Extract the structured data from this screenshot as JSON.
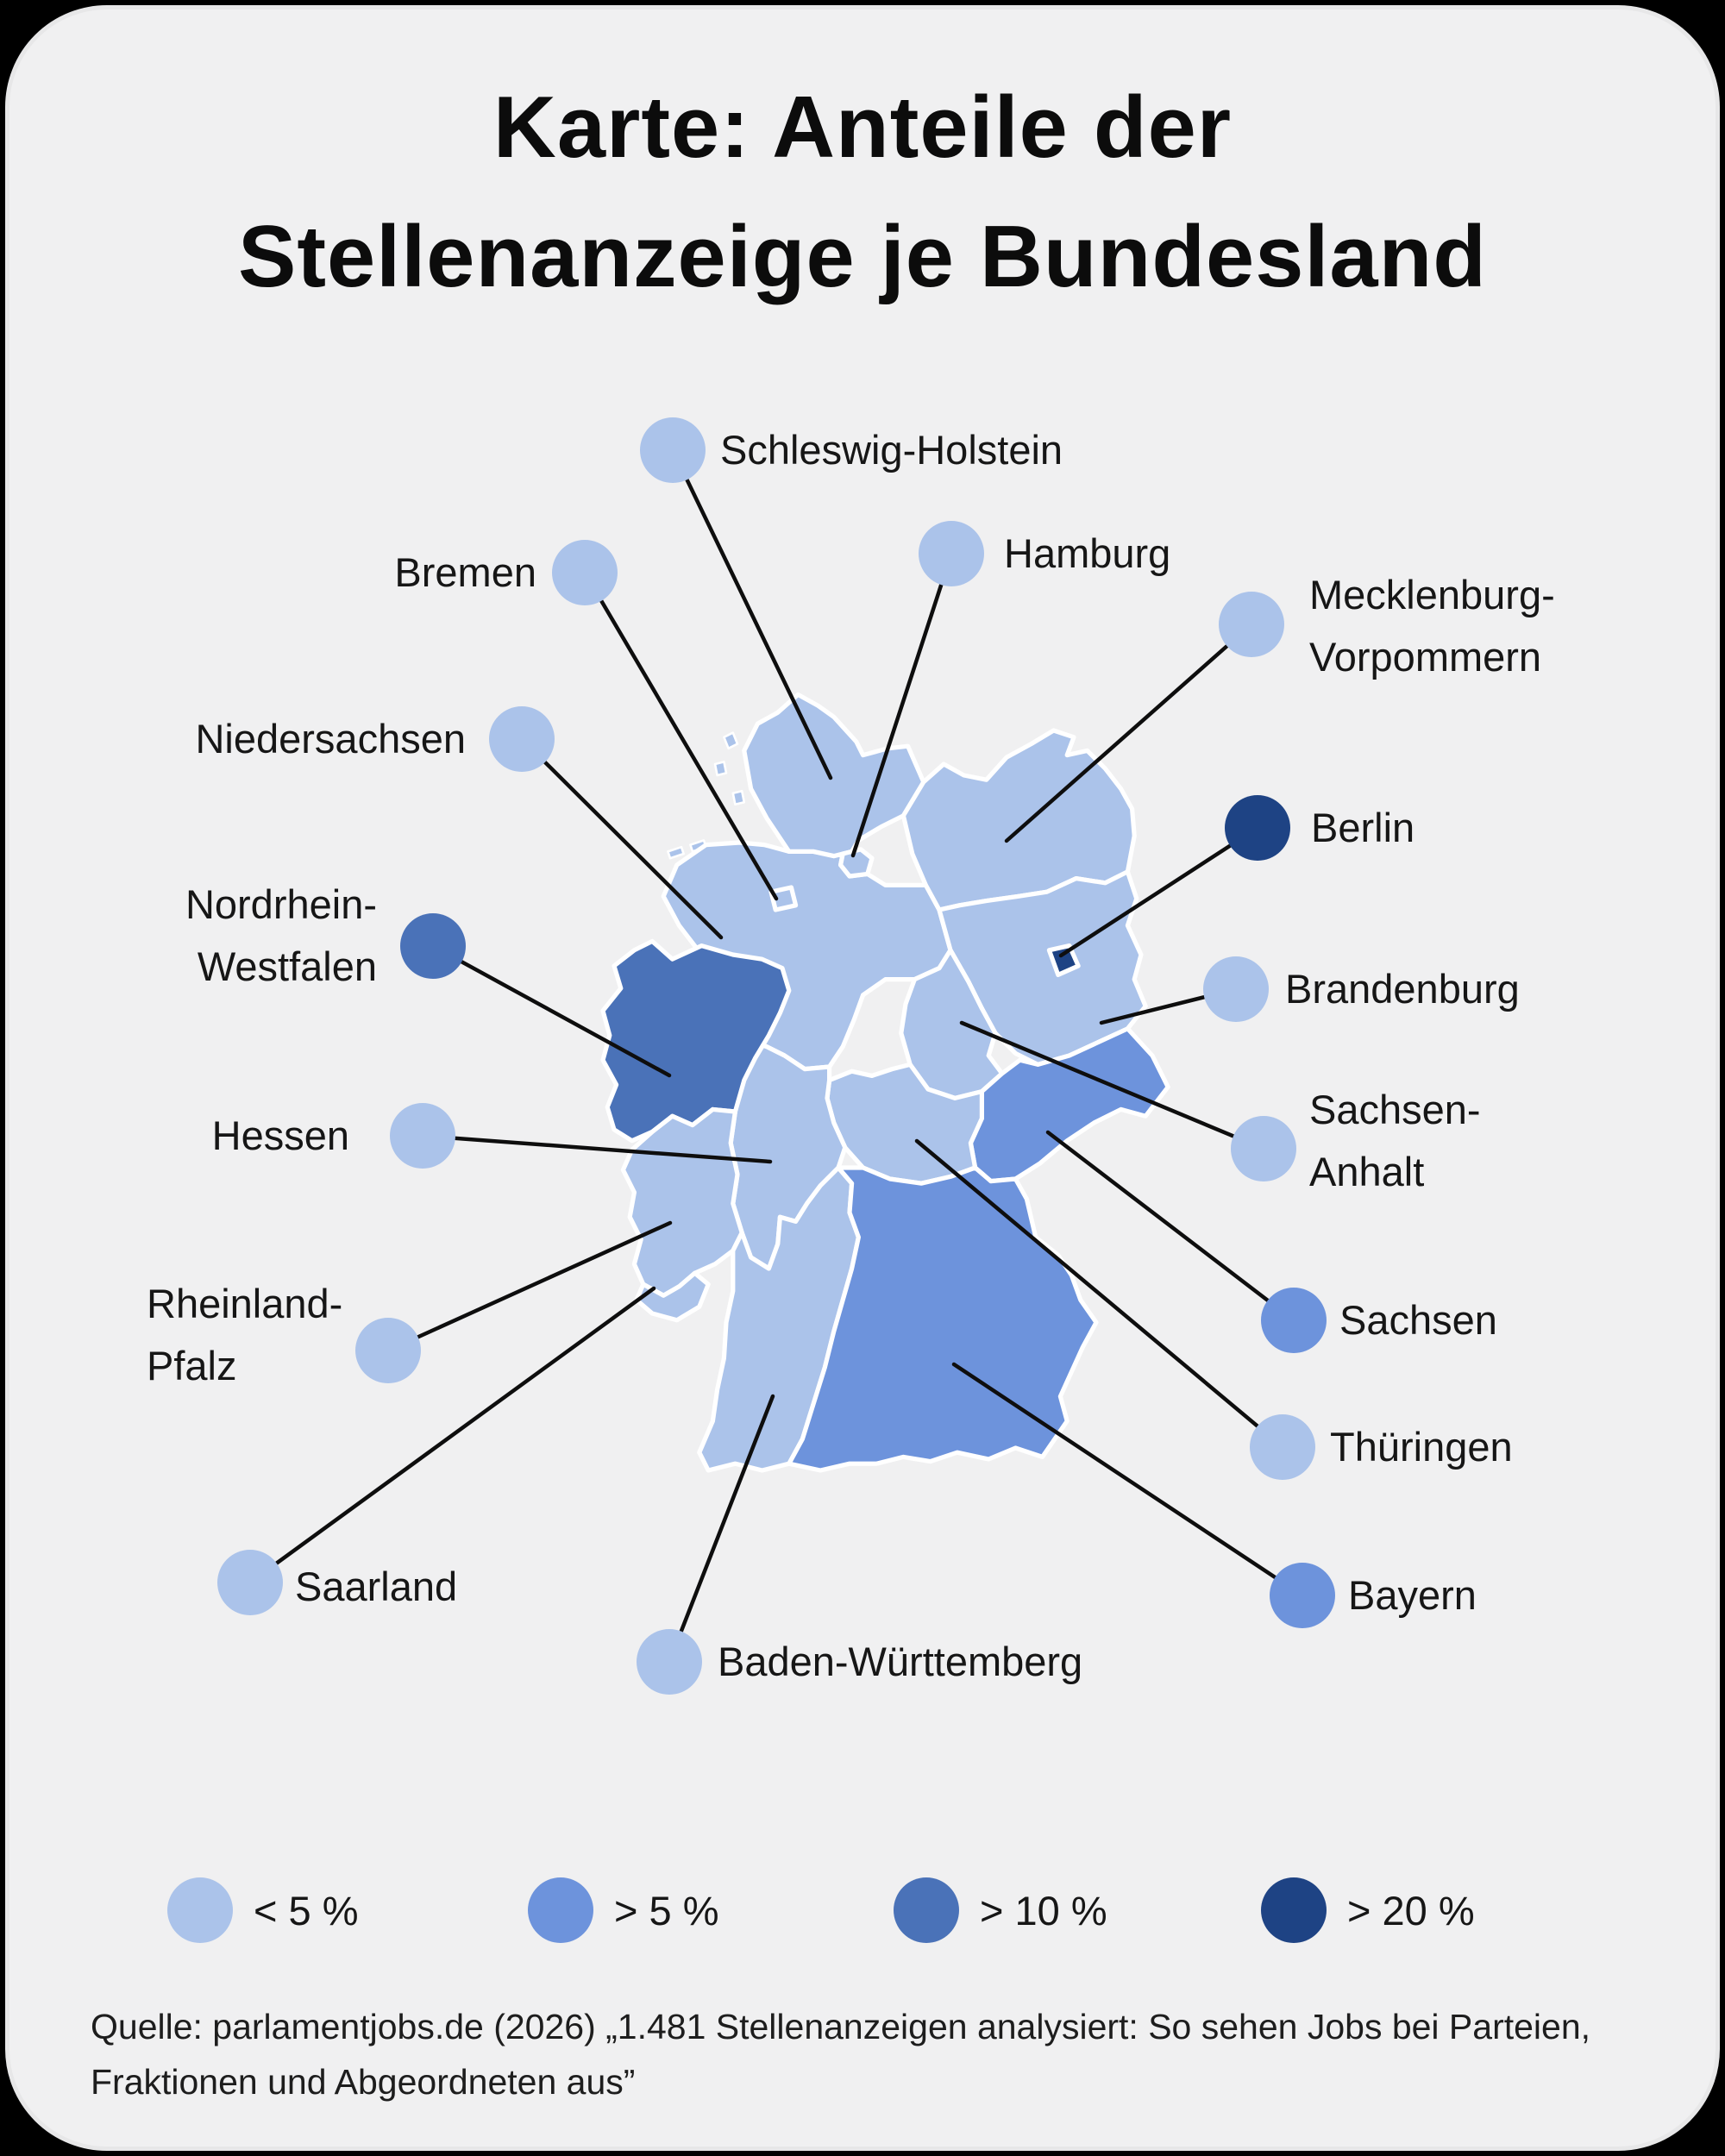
{
  "card": {
    "background": "#f0f0f1",
    "outer_background": "#000000"
  },
  "title": {
    "line1": "Karte: Anteile der",
    "line2": "Stellenanzeige je Bundesland"
  },
  "legend": {
    "items": [
      {
        "key": "lt5",
        "label": "< 5 %",
        "color": "#abc3ea"
      },
      {
        "key": "gt5",
        "label": "> 5 %",
        "color": "#6d93dc"
      },
      {
        "key": "gt10",
        "label": "> 10 %",
        "color": "#4a72b8"
      },
      {
        "key": "gt20",
        "label": "> 20 %",
        "color": "#1e4384"
      }
    ]
  },
  "map": {
    "states": [
      {
        "id": "schleswig-holstein",
        "name_lines": [
          "Schleswig-Holstein"
        ],
        "category": "lt5"
      },
      {
        "id": "hamburg",
        "name_lines": [
          "Hamburg"
        ],
        "category": "lt5"
      },
      {
        "id": "mecklenburg-vorpommern",
        "name_lines": [
          "Mecklenburg-",
          "Vorpommern"
        ],
        "category": "lt5"
      },
      {
        "id": "bremen",
        "name_lines": [
          "Bremen"
        ],
        "category": "lt5"
      },
      {
        "id": "niedersachsen",
        "name_lines": [
          "Niedersachsen"
        ],
        "category": "lt5"
      },
      {
        "id": "berlin",
        "name_lines": [
          "Berlin"
        ],
        "category": "gt20"
      },
      {
        "id": "nordrhein-westfalen",
        "name_lines": [
          "Nordrhein-",
          "Westfalen"
        ],
        "category": "gt10"
      },
      {
        "id": "brandenburg",
        "name_lines": [
          "Brandenburg"
        ],
        "category": "lt5"
      },
      {
        "id": "hessen",
        "name_lines": [
          "Hessen"
        ],
        "category": "lt5"
      },
      {
        "id": "sachsen-anhalt",
        "name_lines": [
          "Sachsen-",
          "Anhalt"
        ],
        "category": "lt5"
      },
      {
        "id": "sachsen",
        "name_lines": [
          "Sachsen"
        ],
        "category": "gt5"
      },
      {
        "id": "rheinland-pfalz",
        "name_lines": [
          "Rheinland-",
          "Pfalz"
        ],
        "category": "lt5"
      },
      {
        "id": "thueringen",
        "name_lines": [
          "Thüringen"
        ],
        "category": "lt5"
      },
      {
        "id": "saarland",
        "name_lines": [
          "Saarland"
        ],
        "category": "lt5"
      },
      {
        "id": "bayern",
        "name_lines": [
          "Bayern"
        ],
        "category": "gt5"
      },
      {
        "id": "baden-wuerttemberg",
        "name_lines": [
          "Baden-Württemberg"
        ],
        "category": "lt5"
      }
    ]
  },
  "source": {
    "lines": [
      "Quelle: parlamentjobs.de (2026) „1.481 Stellenanzeigen analysiert: So sehen Jobs bei Parteien,",
      "Fraktionen und Abgeordneten aus”"
    ]
  }
}
